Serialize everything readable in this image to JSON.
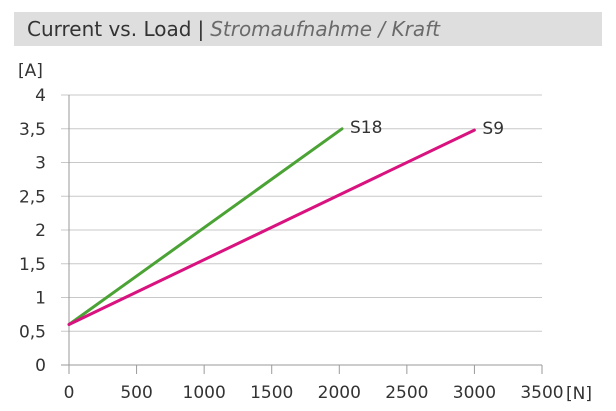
{
  "chart_data": {
    "type": "line",
    "title": "Current vs. Load",
    "title_separator": "|",
    "subtitle": "Stromaufnahme / Kraft",
    "y_unit": "[A]",
    "x_unit": "[N]",
    "xlim": [
      0,
      3500
    ],
    "ylim": [
      0,
      4
    ],
    "x_ticks": [
      0,
      500,
      1000,
      1500,
      2000,
      2500,
      3000,
      3500
    ],
    "x_tick_labels": [
      "0",
      "500",
      "1000",
      "1500",
      "2000",
      "2500",
      "3000",
      "3500"
    ],
    "y_ticks": [
      0,
      0.5,
      1,
      1.5,
      2,
      2.5,
      3,
      3.5,
      4
    ],
    "y_tick_labels": [
      "0",
      "0,5",
      "1",
      "1,5",
      "2",
      "2,5",
      "3",
      "3,5",
      "4"
    ],
    "grid": true,
    "series": [
      {
        "name": "S18",
        "color": "#4aa334",
        "x": [
          0,
          2020
        ],
        "y": [
          0.6,
          3.5
        ]
      },
      {
        "name": "S9",
        "color": "#d9127f",
        "x": [
          0,
          3000
        ],
        "y": [
          0.6,
          3.48
        ]
      }
    ]
  }
}
